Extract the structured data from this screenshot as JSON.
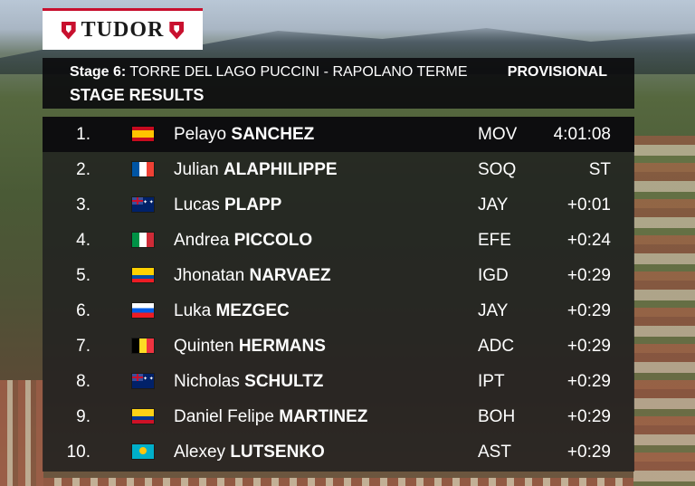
{
  "brand": {
    "logo_text": "TUDOR"
  },
  "header": {
    "stage_label": "Stage 6:",
    "stage_route": "TORRE DEL LAGO PUCCINI - RAPOLANO TERME",
    "status": "PROVISIONAL",
    "title": "STAGE RESULTS"
  },
  "results": [
    {
      "pos": "1.",
      "flag": "spain-flag-icon",
      "first": "Pelayo",
      "last": "SANCHEZ",
      "team": "MOV",
      "time": "4:01:08"
    },
    {
      "pos": "2.",
      "flag": "france-flag-icon",
      "first": "Julian",
      "last": "ALAPHILIPPE",
      "team": "SOQ",
      "time": "ST"
    },
    {
      "pos": "3.",
      "flag": "australia-flag-icon",
      "first": "Lucas",
      "last": "PLAPP",
      "team": "JAY",
      "time": "+0:01"
    },
    {
      "pos": "4.",
      "flag": "italy-flag-icon",
      "first": "Andrea",
      "last": "PICCOLO",
      "team": "EFE",
      "time": "+0:24"
    },
    {
      "pos": "5.",
      "flag": "ecuador-flag-icon",
      "first": "Jhonatan",
      "last": "NARVAEZ",
      "team": "IGD",
      "time": "+0:29"
    },
    {
      "pos": "6.",
      "flag": "slovenia-flag-icon",
      "first": "Luka",
      "last": "MEZGEC",
      "team": "JAY",
      "time": "+0:29"
    },
    {
      "pos": "7.",
      "flag": "belgium-flag-icon",
      "first": "Quinten",
      "last": "HERMANS",
      "team": "ADC",
      "time": "+0:29"
    },
    {
      "pos": "8.",
      "flag": "australia-flag-icon",
      "first": "Nicholas",
      "last": "SCHULTZ",
      "team": "IPT",
      "time": "+0:29"
    },
    {
      "pos": "9.",
      "flag": "colombia-flag-icon",
      "first": "Daniel Felipe",
      "last": "MARTINEZ",
      "team": "BOH",
      "time": "+0:29"
    },
    {
      "pos": "10.",
      "flag": "kazakhstan-flag-icon",
      "first": "Alexey",
      "last": "LUTSENKO",
      "team": "AST",
      "time": "+0:29"
    }
  ],
  "colors": {
    "brand_red": "#c8102e",
    "panel_dark": "#0d0d0f",
    "text": "#ffffff"
  }
}
